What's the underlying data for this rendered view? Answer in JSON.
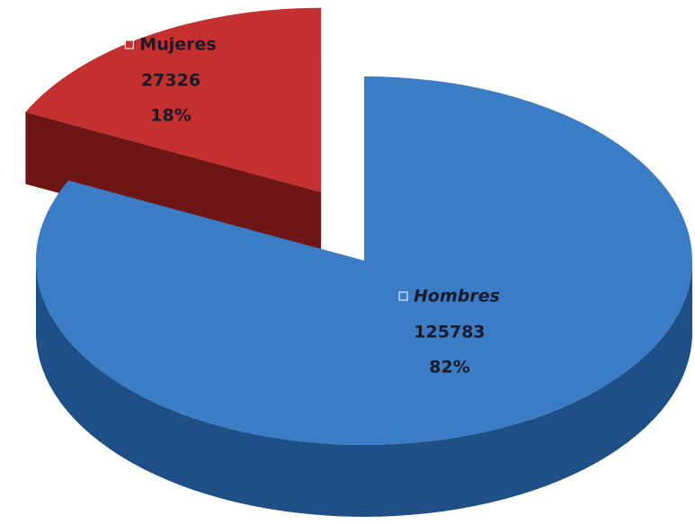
{
  "chart_data": {
    "type": "pie",
    "categories": [
      "Hombres",
      "Mujeres"
    ],
    "values": [
      125783,
      27326
    ],
    "percent_labels": [
      "82%",
      "18%"
    ],
    "colors": [
      "#3a7dc6",
      "#c3302f"
    ],
    "side_colors": [
      "#1f4f87",
      "#6e1616"
    ]
  }
}
